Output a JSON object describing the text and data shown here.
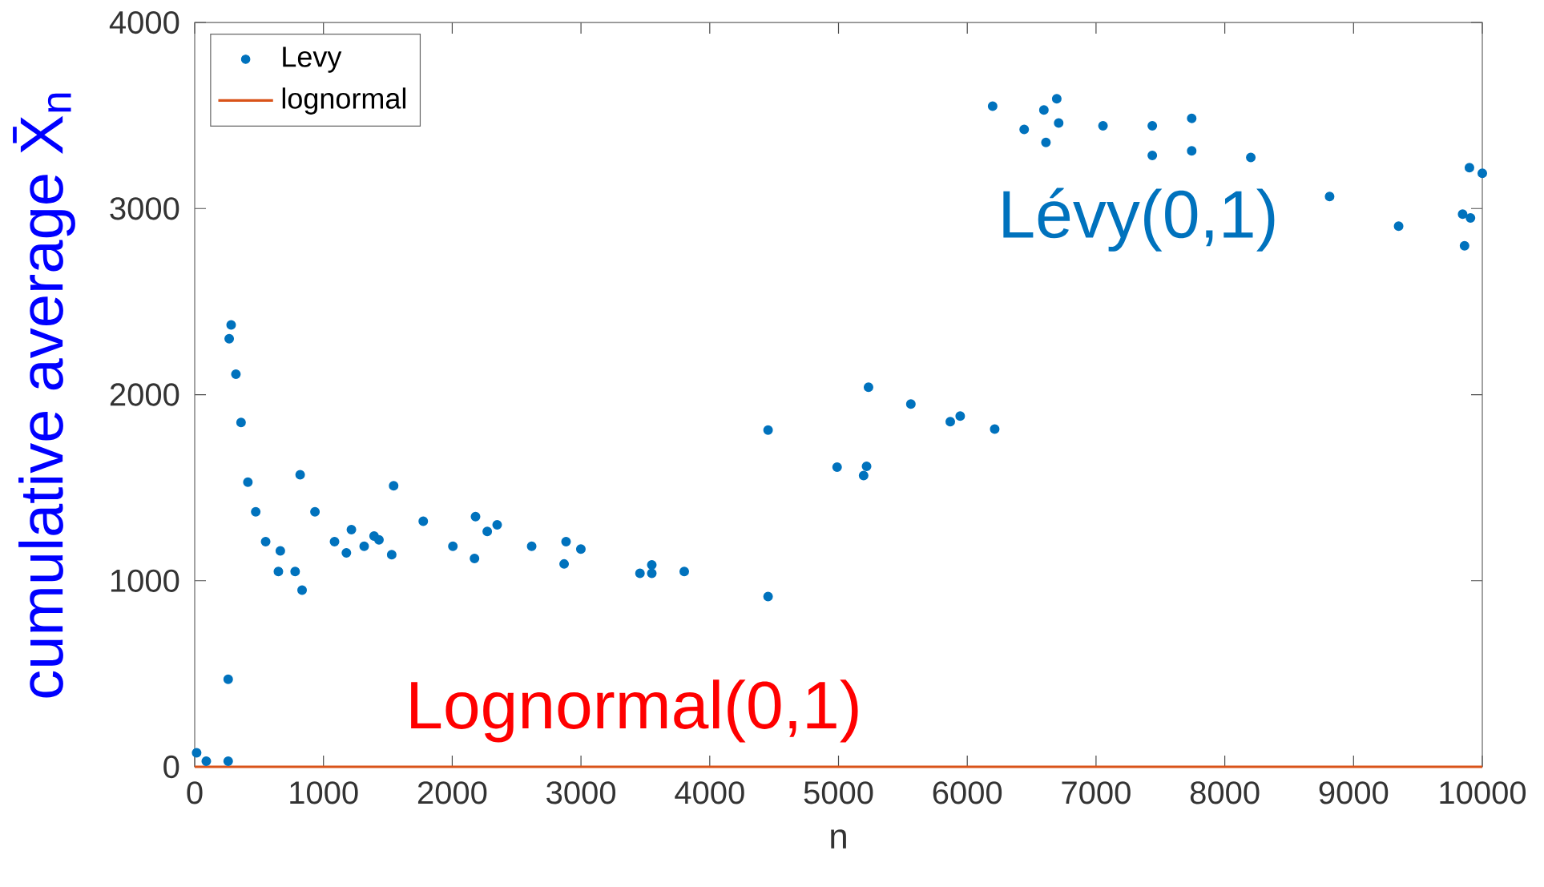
{
  "chart_data": {
    "type": "scatter",
    "xlabel": "n",
    "ylabel": "cumulative average X̄$_{n}$",
    "xlim": [
      0,
      10000
    ],
    "ylim": [
      0,
      4000
    ],
    "xticks": [
      0,
      1000,
      2000,
      3000,
      4000,
      5000,
      6000,
      7000,
      8000,
      9000,
      10000
    ],
    "yticks": [
      0,
      1000,
      2000,
      3000,
      4000
    ],
    "legend": "top left",
    "grid": false,
    "annotations": [
      "Lévy(0,1)",
      "Lognormal(0,1)"
    ],
    "series": [
      {
        "name": "Levy",
        "marker": "circle",
        "color": "#0072bd",
        "x": [
          15,
          90,
          260,
          260,
          268,
          283,
          320,
          360,
          413,
          474,
          551,
          650,
          665,
          780,
          834,
          819,
          934,
          1086,
          1178,
          1217,
          1316,
          1393,
          1431,
          1530,
          1545,
          1775,
          2005,
          2173,
          2181,
          2272,
          2349,
          2617,
          2869,
          2884,
          2999,
          3458,
          3550,
          3550,
          3802,
          4453,
          4453,
          4989,
          5195,
          5218,
          5233,
          5562,
          5868,
          5945,
          6213,
          6197,
          6442,
          6611,
          6595,
          6710,
          6695,
          7054,
          7437,
          7437,
          7743,
          7743,
          8202,
          8814,
          9350,
          9862,
          9847,
          9908,
          9900,
          10000
        ],
        "values": [
          75,
          30,
          30,
          470,
          2300,
          2375,
          2110,
          1850,
          1530,
          1370,
          1210,
          1050,
          1160,
          1050,
          950,
          1570,
          1370,
          1210,
          1150,
          1275,
          1185,
          1240,
          1220,
          1140,
          1510,
          1320,
          1185,
          1120,
          1345,
          1265,
          1300,
          1185,
          1090,
          1210,
          1170,
          1040,
          1040,
          1085,
          1050,
          915,
          1810,
          1610,
          1565,
          1615,
          2040,
          1950,
          1855,
          1885,
          1815,
          3550,
          3425,
          3355,
          3530,
          3460,
          3590,
          3445,
          3285,
          3445,
          3310,
          3485,
          3275,
          3065,
          2905,
          2800,
          2970,
          2950,
          3220,
          3190
        ]
      },
      {
        "name": "lognormal",
        "type": "line",
        "marker": "none",
        "color": "#d95319",
        "x": [
          0,
          10000
        ],
        "values": [
          0,
          0
        ]
      }
    ]
  }
}
